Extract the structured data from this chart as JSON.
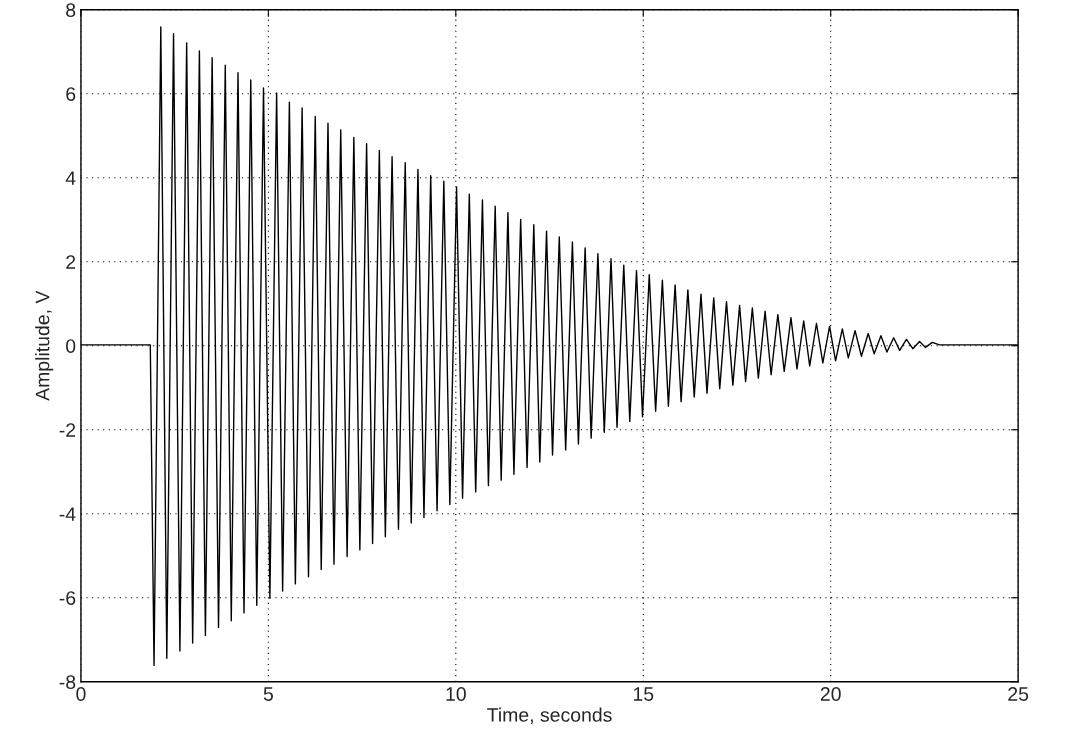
{
  "chart_data": {
    "type": "line",
    "xlabel": "Time, seconds",
    "ylabel": "Amplitude, V",
    "xlim": [
      0,
      25
    ],
    "xticks": [
      0,
      5,
      10,
      15,
      20,
      25
    ],
    "ylim": [
      -8,
      8
    ],
    "yticks": [
      -8,
      -6,
      -4,
      -2,
      0,
      2,
      4,
      6,
      8
    ],
    "grid": true,
    "line_style": "solid",
    "marker": "none",
    "series": [
      {
        "color": "#000000",
        "x": [
          0,
          1.85,
          1.95,
          2.13,
          2.29,
          2.47,
          2.64,
          2.82,
          2.98,
          3.16,
          3.32,
          3.5,
          3.67,
          3.85,
          4.01,
          4.19,
          4.35,
          4.53,
          4.69,
          4.87,
          5.04,
          5.22,
          5.38,
          5.56,
          5.72,
          5.9,
          6.07,
          6.25,
          6.41,
          6.59,
          6.75,
          6.93,
          7.1,
          7.28,
          7.44,
          7.62,
          7.78,
          7.96,
          8.12,
          8.3,
          8.47,
          8.65,
          8.81,
          8.99,
          9.15,
          9.33,
          9.5,
          9.68,
          9.84,
          10.02,
          10.18,
          10.36,
          10.53,
          10.71,
          10.87,
          11.05,
          11.21,
          11.39,
          11.55,
          11.73,
          11.9,
          12.08,
          12.24,
          12.42,
          12.58,
          12.76,
          12.93,
          13.11,
          13.27,
          13.45,
          13.61,
          13.79,
          13.96,
          14.14,
          14.3,
          14.48,
          14.64,
          14.82,
          14.98,
          15.16,
          15.33,
          15.51,
          15.67,
          15.85,
          16.01,
          16.19,
          16.36,
          16.54,
          16.7,
          16.88,
          17.04,
          17.22,
          17.39,
          17.57,
          17.73,
          17.91,
          18.07,
          18.25,
          18.41,
          18.59,
          18.76,
          18.94,
          19.1,
          19.28,
          19.44,
          19.62,
          19.79,
          19.97,
          20.13,
          20.31,
          20.47,
          20.65,
          20.82,
          21.0,
          21.16,
          21.34,
          21.5,
          21.68,
          21.84,
          22.02,
          22.19,
          22.37,
          22.53,
          22.71,
          22.9,
          25
        ],
        "values": [
          0.02,
          0.02,
          -7.61,
          7.59,
          -7.44,
          7.43,
          -7.27,
          7.21,
          -7.08,
          7.02,
          -6.9,
          6.86,
          -6.71,
          6.68,
          -6.55,
          6.5,
          -6.36,
          6.33,
          -6.18,
          6.14,
          -6.01,
          6.02,
          -5.84,
          5.8,
          -5.67,
          5.66,
          -5.5,
          5.46,
          -5.33,
          5.3,
          -5.2,
          5.14,
          -5.02,
          4.96,
          -4.86,
          4.81,
          -4.71,
          4.65,
          -4.55,
          4.5,
          -4.37,
          4.36,
          -4.22,
          4.2,
          -4.09,
          4.05,
          -3.93,
          3.92,
          -3.78,
          3.78,
          -3.63,
          3.61,
          -3.48,
          3.47,
          -3.33,
          3.32,
          -3.2,
          3.17,
          -3.06,
          3.01,
          -2.9,
          2.88,
          -2.77,
          2.73,
          -2.6,
          2.59,
          -2.48,
          2.47,
          -2.34,
          2.33,
          -2.2,
          2.19,
          -2.06,
          2.07,
          -1.94,
          1.92,
          -1.8,
          1.79,
          -1.69,
          1.69,
          -1.56,
          1.56,
          -1.44,
          1.45,
          -1.33,
          1.33,
          -1.22,
          1.23,
          -1.13,
          1.14,
          -1.02,
          1.05,
          -0.94,
          0.96,
          -0.85,
          0.9,
          -0.77,
          0.82,
          -0.69,
          0.74,
          -0.61,
          0.67,
          -0.55,
          0.59,
          -0.48,
          0.53,
          -0.41,
          0.46,
          -0.36,
          0.4,
          -0.29,
          0.36,
          -0.25,
          0.29,
          -0.19,
          0.24,
          -0.15,
          0.19,
          -0.11,
          0.15,
          -0.07,
          0.1,
          -0.04,
          0.08,
          0.02,
          0.02
        ]
      }
    ]
  }
}
